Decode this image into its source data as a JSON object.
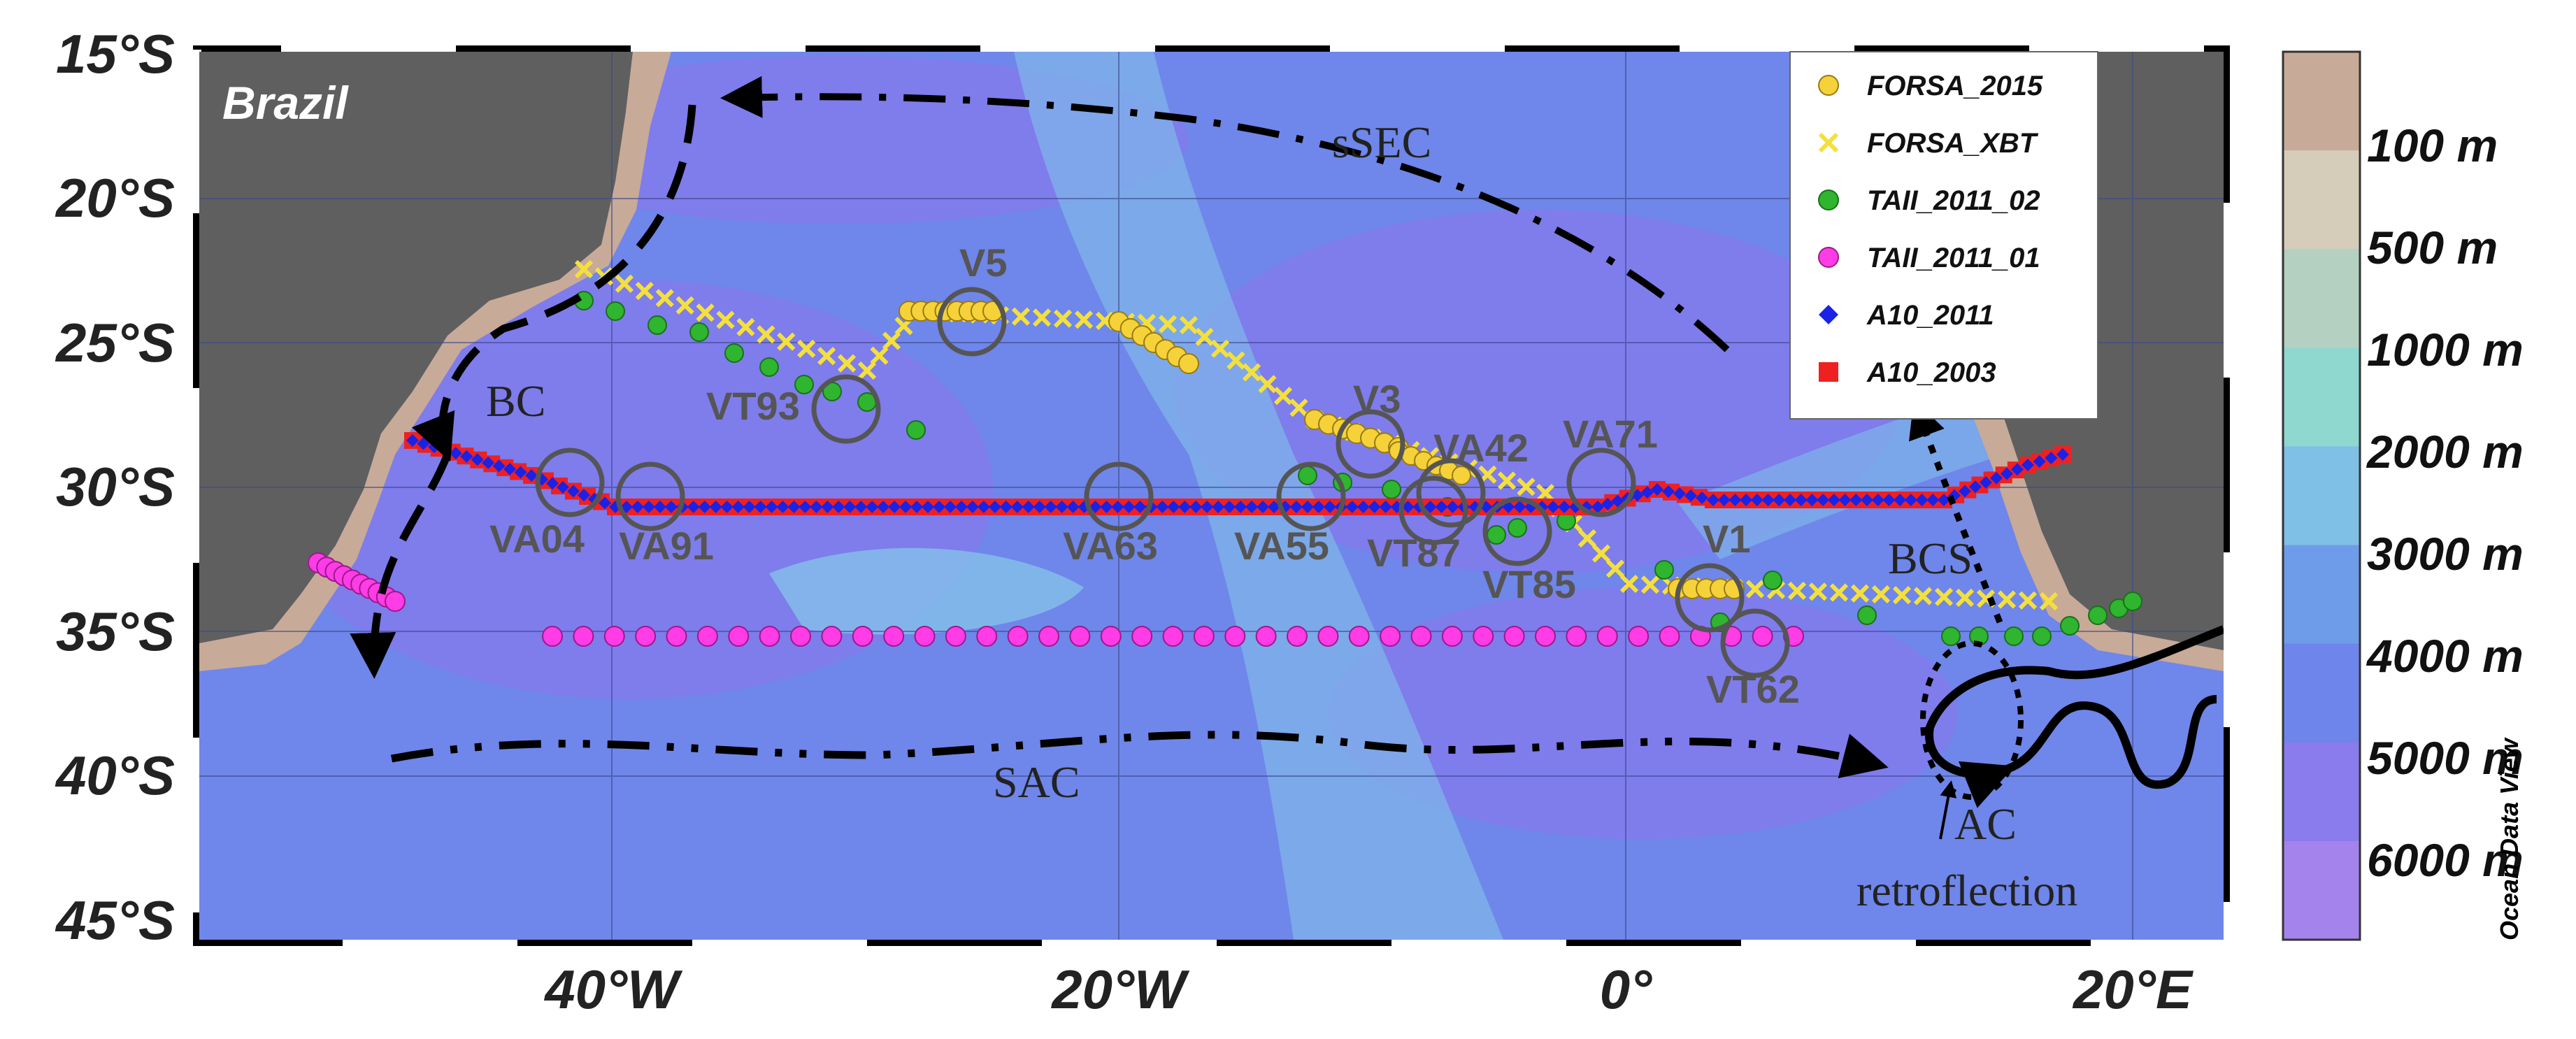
{
  "map": {
    "country_label": "Brazil",
    "lat_labels": [
      "15°S",
      "20°S",
      "25°S",
      "30°S",
      "35°S",
      "40°S",
      "45°S"
    ],
    "lon_labels": [
      "40°W",
      "20°W",
      "0°",
      "20°E"
    ],
    "credit": "Ocean Data View"
  },
  "legend": {
    "items": [
      {
        "name": "FORSA_2015",
        "symbol": "circle",
        "color": "#f5d23a",
        "stroke": "#9a7a10"
      },
      {
        "name": "FORSA_XBT",
        "symbol": "cross",
        "color": "#f4e03c",
        "stroke": "#f4e03c"
      },
      {
        "name": "TAII_2011_02",
        "symbol": "circle",
        "color": "#2fb52f",
        "stroke": "#1a701a"
      },
      {
        "name": "TAII_2011_01",
        "symbol": "circle",
        "color": "#ff3ce6",
        "stroke": "#9a1a8a"
      },
      {
        "name": "A10_2011",
        "symbol": "diamond",
        "color": "#1a22e6",
        "stroke": "#1a22e6"
      },
      {
        "name": "A10_2003",
        "symbol": "square",
        "color": "#ef2020",
        "stroke": "#ef2020"
      }
    ]
  },
  "colorbar": {
    "labels": [
      "100 m",
      "500 m",
      "1000 m",
      "2000 m",
      "3000 m",
      "4000 m",
      "5000 m",
      "6000 m"
    ],
    "colors": [
      "#c8aa98",
      "#d6ccba",
      "#b4d0c0",
      "#8ed8d0",
      "#7ec0e6",
      "#6f9ce8",
      "#6e86ec",
      "#8a7cec",
      "#a484ec"
    ]
  },
  "sites": [
    "V5",
    "VT93",
    "V3",
    "VA42",
    "VA71",
    "VA04",
    "VA91",
    "VA63",
    "VA55",
    "VT87",
    "VT85",
    "V1",
    "VT62"
  ],
  "currents": [
    "sSEC",
    "BC",
    "BCS",
    "SAC",
    "AC",
    "retroflection"
  ]
}
